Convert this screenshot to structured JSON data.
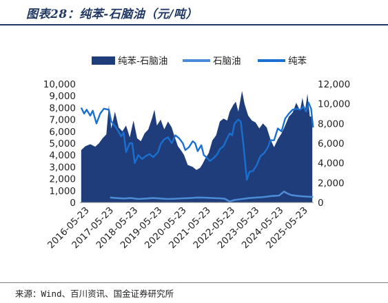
{
  "figure": {
    "title": "图表28：纯苯-石脑油（元/吨）",
    "source": "来源：Wind、百川资讯、国金证券研究所"
  },
  "colors": {
    "spread": "#1f3d7a",
    "naphtha": "#4a8bd6",
    "benzene": "#1a6fd0",
    "title": "#1f3864"
  },
  "chart_data": {
    "type": "area",
    "x_tick_labels": [
      "2016-05-23",
      "2017-05-23",
      "2018-05-23",
      "2019-05-23",
      "2020-05-23",
      "2021-05-23",
      "2022-05-23",
      "2023-05-23",
      "2024-05-23",
      "2025-05-23"
    ],
    "x_range": [
      2016.33,
      2025.8
    ],
    "left_axis": {
      "ylim": [
        0,
        10000
      ],
      "ticks": [
        "0",
        "1,000",
        "2,000",
        "3,000",
        "4,000",
        "5,000",
        "6,000",
        "7,000",
        "8,000",
        "9,000",
        "10,000"
      ]
    },
    "right_axis": {
      "ylim": [
        0,
        12000
      ],
      "ticks": [
        "0",
        "2,000",
        "4,000",
        "6,000",
        "8,000",
        "10,000",
        "12,000"
      ]
    },
    "legend": {
      "position": "top",
      "entries": [
        "纯苯-石脑油",
        "石脑油",
        "纯苯"
      ]
    },
    "series": [
      {
        "name": "纯苯-石脑油",
        "kind": "area",
        "axis": "right",
        "points": [
          [
            2016.38,
            5300
          ],
          [
            2016.55,
            5700
          ],
          [
            2016.75,
            5900
          ],
          [
            2016.95,
            5650
          ],
          [
            2017.1,
            6000
          ],
          [
            2017.25,
            6500
          ],
          [
            2017.4,
            6900
          ],
          [
            2017.5,
            9800
          ],
          [
            2017.6,
            7500
          ],
          [
            2017.75,
            9200
          ],
          [
            2017.9,
            7600
          ],
          [
            2018.05,
            7200
          ],
          [
            2018.2,
            7800
          ],
          [
            2018.35,
            6600
          ],
          [
            2018.5,
            8300
          ],
          [
            2018.65,
            6500
          ],
          [
            2018.8,
            6200
          ],
          [
            2018.95,
            7000
          ],
          [
            2019.1,
            7400
          ],
          [
            2019.25,
            8500
          ],
          [
            2019.35,
            9400
          ],
          [
            2019.45,
            7800
          ],
          [
            2019.6,
            8400
          ],
          [
            2019.75,
            7400
          ],
          [
            2019.9,
            8200
          ],
          [
            2020.05,
            7600
          ],
          [
            2020.15,
            6800
          ],
          [
            2020.3,
            5700
          ],
          [
            2020.45,
            5200
          ],
          [
            2020.55,
            4800
          ],
          [
            2020.7,
            3800
          ],
          [
            2020.9,
            3600
          ],
          [
            2021.05,
            3300
          ],
          [
            2021.2,
            3500
          ],
          [
            2021.3,
            3900
          ],
          [
            2021.4,
            4400
          ],
          [
            2021.55,
            5000
          ],
          [
            2021.7,
            6300
          ],
          [
            2021.85,
            6800
          ],
          [
            2022.0,
            8200
          ],
          [
            2022.15,
            8500
          ],
          [
            2022.3,
            8300
          ],
          [
            2022.4,
            9200
          ],
          [
            2022.55,
            9900
          ],
          [
            2022.65,
            10200
          ],
          [
            2022.75,
            9200
          ],
          [
            2022.9,
            11300
          ],
          [
            2023.0,
            10000
          ],
          [
            2023.15,
            8800
          ],
          [
            2023.3,
            8300
          ],
          [
            2023.45,
            8100
          ],
          [
            2023.6,
            7500
          ],
          [
            2023.75,
            8000
          ],
          [
            2023.9,
            7600
          ],
          [
            2024.05,
            6400
          ],
          [
            2024.2,
            5600
          ],
          [
            2024.35,
            6400
          ],
          [
            2024.5,
            7000
          ],
          [
            2024.65,
            7800
          ],
          [
            2024.8,
            8700
          ],
          [
            2024.95,
            9100
          ],
          [
            2025.1,
            10100
          ],
          [
            2025.25,
            9300
          ],
          [
            2025.35,
            10600
          ],
          [
            2025.45,
            9200
          ],
          [
            2025.55,
            11000
          ],
          [
            2025.65,
            8700
          ],
          [
            2025.75,
            8700
          ]
        ]
      },
      {
        "name": "石脑油",
        "kind": "line",
        "axis": "right",
        "points": [
          [
            2017.55,
            500
          ],
          [
            2017.8,
            450
          ],
          [
            2018.1,
            400
          ],
          [
            2018.4,
            450
          ],
          [
            2018.7,
            350
          ],
          [
            2019.0,
            400
          ],
          [
            2019.3,
            450
          ],
          [
            2019.6,
            400
          ],
          [
            2019.9,
            350
          ],
          [
            2020.2,
            380
          ],
          [
            2020.5,
            420
          ],
          [
            2020.8,
            450
          ],
          [
            2021.1,
            500
          ],
          [
            2021.4,
            480
          ],
          [
            2021.7,
            450
          ],
          [
            2022.0,
            420
          ],
          [
            2022.2,
            380
          ],
          [
            2022.4,
            100
          ],
          [
            2022.6,
            250
          ],
          [
            2022.9,
            350
          ],
          [
            2023.2,
            450
          ],
          [
            2023.5,
            500
          ],
          [
            2023.8,
            550
          ],
          [
            2024.1,
            650
          ],
          [
            2024.4,
            700
          ],
          [
            2024.6,
            1100
          ],
          [
            2024.75,
            900
          ],
          [
            2024.9,
            750
          ],
          [
            2025.2,
            650
          ],
          [
            2025.5,
            600
          ],
          [
            2025.78,
            550
          ]
        ]
      },
      {
        "name": "纯苯",
        "kind": "line",
        "axis": "right",
        "points": [
          [
            2016.38,
            9600
          ],
          [
            2016.5,
            9000
          ],
          [
            2016.6,
            9400
          ],
          [
            2016.75,
            8800
          ],
          [
            2016.85,
            9300
          ],
          [
            2017.0,
            8000
          ],
          [
            2017.15,
            9000
          ],
          [
            2017.3,
            9500
          ],
          [
            2017.5,
            9400
          ],
          [
            2017.6,
            8200
          ],
          [
            2017.8,
            7600
          ],
          [
            2018.0,
            6700
          ],
          [
            2018.1,
            7100
          ],
          [
            2018.2,
            5100
          ],
          [
            2018.35,
            6000
          ],
          [
            2018.45,
            6000
          ],
          [
            2018.55,
            4000
          ],
          [
            2018.7,
            4800
          ],
          [
            2018.85,
            4400
          ],
          [
            2019.0,
            4700
          ],
          [
            2019.15,
            4900
          ],
          [
            2019.3,
            4600
          ],
          [
            2019.5,
            5100
          ],
          [
            2019.6,
            5900
          ],
          [
            2019.75,
            6400
          ],
          [
            2019.9,
            6600
          ],
          [
            2020.05,
            6000
          ],
          [
            2020.2,
            6800
          ],
          [
            2020.35,
            6500
          ],
          [
            2020.5,
            6000
          ],
          [
            2020.6,
            5300
          ],
          [
            2020.75,
            5600
          ],
          [
            2020.9,
            6200
          ],
          [
            2021.0,
            6000
          ],
          [
            2021.1,
            5200
          ],
          [
            2021.25,
            5800
          ],
          [
            2021.35,
            4800
          ],
          [
            2021.45,
            4600
          ],
          [
            2021.6,
            4200
          ],
          [
            2021.75,
            4500
          ],
          [
            2021.9,
            4900
          ],
          [
            2022.0,
            5400
          ],
          [
            2022.15,
            5700
          ],
          [
            2022.3,
            6500
          ],
          [
            2022.4,
            7000
          ],
          [
            2022.5,
            6800
          ],
          [
            2022.6,
            8000
          ],
          [
            2022.75,
            8400
          ],
          [
            2022.85,
            8200
          ],
          [
            2022.95,
            6000
          ],
          [
            2023.05,
            3400
          ],
          [
            2023.1,
            2300
          ],
          [
            2023.2,
            3100
          ],
          [
            2023.35,
            3200
          ],
          [
            2023.5,
            3800
          ],
          [
            2023.65,
            4700
          ],
          [
            2023.8,
            5000
          ],
          [
            2023.95,
            5600
          ],
          [
            2024.05,
            6300
          ],
          [
            2024.2,
            6300
          ],
          [
            2024.35,
            7500
          ],
          [
            2024.5,
            7200
          ],
          [
            2024.65,
            8500
          ],
          [
            2024.8,
            9000
          ],
          [
            2024.95,
            9400
          ],
          [
            2025.1,
            9500
          ],
          [
            2025.25,
            9400
          ],
          [
            2025.4,
            9700
          ],
          [
            2025.5,
            9200
          ],
          [
            2025.6,
            10100
          ],
          [
            2025.7,
            9500
          ],
          [
            2025.78,
            7600
          ]
        ]
      }
    ]
  }
}
